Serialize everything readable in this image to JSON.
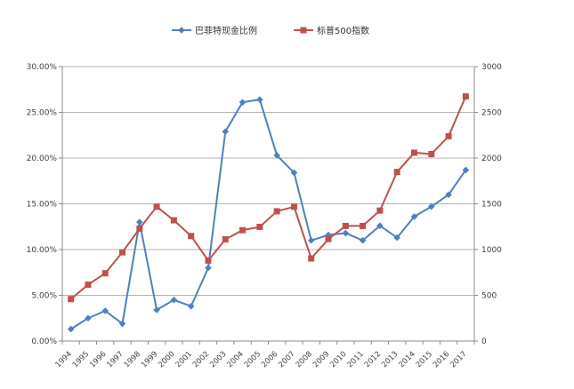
{
  "chart_data": {
    "type": "line",
    "x": [
      "1994",
      "1995",
      "1996",
      "1997",
      "1998",
      "1999",
      "2000",
      "2001",
      "2002",
      "2003",
      "2004",
      "2005",
      "2006",
      "2007",
      "2008",
      "2009",
      "2010",
      "2011",
      "2012",
      "2013",
      "2014",
      "2015",
      "2016",
      "2017"
    ],
    "series": [
      {
        "name": "巴菲特现金比例",
        "axis": "left",
        "color": "#4F81BD",
        "marker": "diamond",
        "values": [
          0.013,
          0.025,
          0.033,
          0.019,
          0.13,
          0.034,
          0.045,
          0.038,
          0.08,
          0.229,
          0.261,
          0.264,
          0.203,
          0.184,
          0.11,
          0.116,
          0.118,
          0.11,
          0.126,
          0.113,
          0.136,
          0.147,
          0.16,
          0.187
        ]
      },
      {
        "name": "标普500指数",
        "axis": "right",
        "color": "#C0504D",
        "marker": "square",
        "values": [
          459,
          616,
          741,
          970,
          1229,
          1469,
          1320,
          1148,
          880,
          1112,
          1212,
          1248,
          1418,
          1468,
          903,
          1115,
          1258,
          1258,
          1426,
          1848,
          2059,
          2044,
          2239,
          2674
        ]
      }
    ],
    "y_left": {
      "ylim": [
        0,
        0.3
      ],
      "ticks": [
        0,
        0.05,
        0.1,
        0.15,
        0.2,
        0.25,
        0.3
      ],
      "tick_labels": [
        "0.00%",
        "5.00%",
        "10.00%",
        "15.00%",
        "20.00%",
        "25.00%",
        "30.00%"
      ]
    },
    "y_right": {
      "ylim": [
        0,
        3000
      ],
      "ticks": [
        0,
        500,
        1000,
        1500,
        2000,
        2500,
        3000
      ],
      "tick_labels": [
        "0",
        "500",
        "1000",
        "1500",
        "2000",
        "2500",
        "3000"
      ]
    },
    "grid": true,
    "legend": "top-center"
  }
}
